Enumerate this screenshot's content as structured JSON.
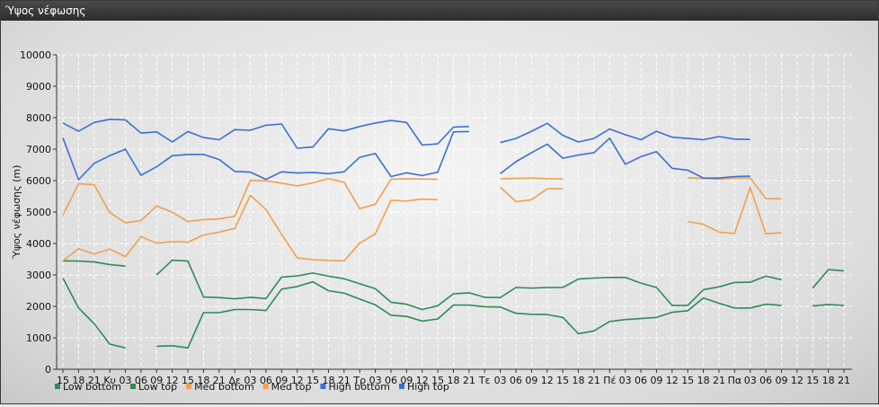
{
  "window": {
    "title": "Ύψος νέφωσης"
  },
  "chart_data": {
    "type": "line",
    "ylabel": "Ύψος νέφωσης (m)",
    "xlabel": "",
    "ylim": [
      0,
      10000
    ],
    "yticks": [
      0,
      1000,
      2000,
      3000,
      4000,
      5000,
      6000,
      7000,
      8000,
      9000,
      10000
    ],
    "grid": true,
    "legend_position": "bottom-left",
    "categories": [
      "15",
      "18",
      "21",
      "Κυ",
      "03",
      "06",
      "09",
      "12",
      "15",
      "18",
      "21",
      "Δε",
      "03",
      "06",
      "09",
      "12",
      "15",
      "18",
      "21",
      "Τρ",
      "03",
      "06",
      "09",
      "12",
      "15",
      "18",
      "21",
      "Τε",
      "03",
      "06",
      "09",
      "12",
      "15",
      "18",
      "21",
      "Πέ",
      "03",
      "06",
      "09",
      "12",
      "15",
      "18",
      "21",
      "Πα",
      "03",
      "06",
      "09",
      "12",
      "15",
      "18",
      "21"
    ],
    "series": [
      {
        "name": "Low bottom",
        "color": "#2e8b57",
        "values": [
          2900,
          1950,
          1450,
          800,
          680,
          null,
          730,
          750,
          680,
          1800,
          1800,
          1900,
          1900,
          1870,
          2550,
          2630,
          2780,
          2500,
          2420,
          2230,
          2050,
          1720,
          1680,
          1530,
          1600,
          2040,
          2040,
          1990,
          1980,
          1780,
          1750,
          1740,
          1650,
          1130,
          1220,
          1520,
          1580,
          1610,
          1650,
          1810,
          1860,
          2270,
          2100,
          1950,
          1950,
          2070,
          2030,
          null,
          2010,
          2060,
          2030
        ]
      },
      {
        "name": "Low top",
        "color": "#2e8b57",
        "values": [
          3450,
          3440,
          3410,
          3330,
          3280,
          null,
          3000,
          3470,
          3440,
          2300,
          2280,
          2240,
          2290,
          2250,
          2930,
          2970,
          3060,
          2960,
          2880,
          2720,
          2560,
          2130,
          2070,
          1900,
          2020,
          2400,
          2430,
          2290,
          2280,
          2600,
          2580,
          2600,
          2600,
          2870,
          2900,
          2920,
          2920,
          2740,
          2600,
          2030,
          2030,
          2530,
          2620,
          2760,
          2770,
          2960,
          2850,
          null,
          2580,
          3170,
          3130
        ]
      },
      {
        "name": "Med bottom",
        "color": "#f0a050",
        "values": [
          3450,
          3830,
          3670,
          3820,
          3580,
          4220,
          4010,
          4060,
          4040,
          4270,
          4360,
          4480,
          5530,
          5080,
          4290,
          3540,
          3490,
          3460,
          3450,
          4010,
          4310,
          5370,
          5350,
          5410,
          5390,
          null,
          null,
          null,
          5790,
          5330,
          5390,
          5740,
          5740,
          null,
          null,
          null,
          null,
          null,
          null,
          null,
          4700,
          4610,
          4360,
          4320,
          5780,
          4310,
          4340,
          null,
          null,
          null,
          null
        ]
      },
      {
        "name": "Med top",
        "color": "#f0a050",
        "values": [
          4900,
          5900,
          5870,
          4980,
          4660,
          4730,
          5190,
          4990,
          4700,
          4760,
          4780,
          4870,
          6010,
          5990,
          5920,
          5830,
          5930,
          6060,
          5950,
          5110,
          5250,
          6040,
          6060,
          6050,
          6040,
          null,
          null,
          null,
          6060,
          6070,
          6080,
          6060,
          6050,
          null,
          null,
          null,
          null,
          null,
          null,
          null,
          6090,
          6070,
          6050,
          6080,
          6080,
          5430,
          5420,
          null,
          null,
          null,
          null
        ]
      },
      {
        "name": "High bottom",
        "color": "#3b6fd4",
        "values": [
          7360,
          6030,
          6550,
          6790,
          7000,
          6170,
          6440,
          6790,
          6830,
          6830,
          6670,
          6290,
          6270,
          6040,
          6280,
          6240,
          6260,
          6220,
          6280,
          6740,
          6860,
          6130,
          6250,
          6160,
          6270,
          7550,
          7560,
          null,
          6220,
          6600,
          6890,
          7160,
          6710,
          6810,
          6890,
          7350,
          6520,
          6760,
          6920,
          6390,
          6330,
          6080,
          6080,
          6130,
          6140,
          null,
          null,
          null,
          null,
          null,
          null
        ]
      },
      {
        "name": "High top",
        "color": "#3b6fd4",
        "values": [
          7830,
          7570,
          7850,
          7950,
          7930,
          7510,
          7550,
          7230,
          7560,
          7370,
          7300,
          7620,
          7600,
          7760,
          7800,
          7030,
          7070,
          7650,
          7580,
          7720,
          7830,
          7910,
          7850,
          7130,
          7170,
          7700,
          7720,
          null,
          7210,
          7340,
          7570,
          7820,
          7440,
          7230,
          7340,
          7640,
          7460,
          7300,
          7570,
          7380,
          7340,
          7300,
          7400,
          7320,
          7310,
          null,
          null,
          null,
          null,
          null,
          null
        ]
      }
    ]
  }
}
